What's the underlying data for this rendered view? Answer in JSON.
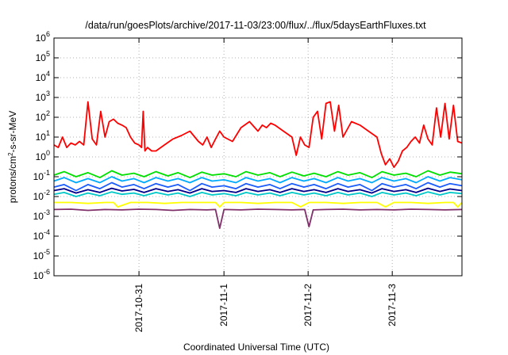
{
  "chart_data": {
    "type": "line",
    "title": "/data/run/goesPlots/archive/2017-11-03/23:00/flux/../flux/5daysEarthFluxes.txt",
    "xlabel": "Coordinated Universal Time (UTC)",
    "ylabel": "protons/cm2-s-sr-MeV",
    "ylabel_parts": {
      "base": "protons/cm",
      "sup": "2",
      "rest": "-s-sr-MeV"
    },
    "y_scale": "log",
    "ylim": [
      1e-06,
      1000000.0
    ],
    "y_ticks": [
      {
        "value": 1e-06,
        "base": "10",
        "exp": "-6"
      },
      {
        "value": 1e-05,
        "base": "10",
        "exp": "-5"
      },
      {
        "value": 0.0001,
        "base": "10",
        "exp": "-4"
      },
      {
        "value": 0.001,
        "base": "10",
        "exp": "-3"
      },
      {
        "value": 0.01,
        "base": "10",
        "exp": "-2"
      },
      {
        "value": 0.1,
        "base": "10",
        "exp": "-1"
      },
      {
        "value": 1,
        "base": "10",
        "exp": "0"
      },
      {
        "value": 10,
        "base": "10",
        "exp": "1"
      },
      {
        "value": 100,
        "base": "10",
        "exp": "2"
      },
      {
        "value": 1000,
        "base": "10",
        "exp": "3"
      },
      {
        "value": 10000,
        "base": "10",
        "exp": "4"
      },
      {
        "value": 100000,
        "base": "10",
        "exp": "5"
      },
      {
        "value": 1000000,
        "base": "10",
        "exp": "6"
      }
    ],
    "x_unit": "days",
    "xlim": [
      0,
      4.8
    ],
    "x_ticks": [
      {
        "value": 1,
        "label": "2017-10-31"
      },
      {
        "value": 2,
        "label": "2017-11-1"
      },
      {
        "value": 2.99,
        "label": "2017-11-2"
      },
      {
        "value": 3.98,
        "label": "2017-11-3"
      }
    ],
    "grid": true,
    "series": [
      {
        "color": "#ff0000",
        "x": [
          0,
          0.05,
          0.1,
          0.15,
          0.2,
          0.25,
          0.3,
          0.35,
          0.4,
          0.45,
          0.5,
          0.55,
          0.6,
          0.65,
          0.7,
          0.75,
          0.8,
          0.85,
          0.9,
          0.95,
          1.0,
          1.03,
          1.05,
          1.07,
          1.1,
          1.15,
          1.2,
          1.3,
          1.4,
          1.5,
          1.6,
          1.7,
          1.75,
          1.8,
          1.85,
          1.9,
          1.95,
          2.0,
          2.1,
          2.2,
          2.3,
          2.4,
          2.45,
          2.5,
          2.55,
          2.6,
          2.7,
          2.8,
          2.85,
          2.9,
          2.95,
          3.0,
          3.05,
          3.1,
          3.15,
          3.2,
          3.25,
          3.3,
          3.35,
          3.4,
          3.5,
          3.6,
          3.7,
          3.8,
          3.85,
          3.9,
          3.95,
          4.0,
          4.05,
          4.1,
          4.15,
          4.2,
          4.25,
          4.3,
          4.35,
          4.4,
          4.45,
          4.5,
          4.55,
          4.6,
          4.65,
          4.7,
          4.75,
          4.8
        ],
        "y": [
          4,
          3,
          10,
          3,
          5,
          4,
          6,
          4,
          600,
          8,
          4,
          200,
          10,
          60,
          80,
          50,
          40,
          30,
          10,
          5,
          4,
          3,
          200,
          2,
          3,
          2,
          2,
          4,
          8,
          12,
          20,
          6,
          4,
          10,
          3,
          8,
          20,
          10,
          6,
          30,
          60,
          20,
          40,
          30,
          50,
          40,
          20,
          10,
          1.2,
          10,
          4,
          3,
          100,
          200,
          8,
          500,
          600,
          20,
          400,
          10,
          60,
          40,
          20,
          10,
          1.5,
          0.4,
          0.8,
          0.3,
          0.6,
          2,
          3,
          6,
          10,
          5,
          40,
          8,
          4,
          300,
          10,
          500,
          8,
          400,
          6,
          5
        ]
      },
      {
        "color": "#00e000",
        "x": [
          0,
          0.12,
          0.26,
          0.4,
          0.54,
          0.68,
          0.8,
          0.94,
          1.06,
          1.2,
          1.34,
          1.46,
          1.6,
          1.74,
          1.86,
          2.0,
          2.14,
          2.26,
          2.4,
          2.54,
          2.66,
          2.8,
          2.94,
          3.06,
          3.2,
          3.34,
          3.46,
          3.6,
          3.74,
          3.86,
          4.0,
          4.14,
          4.26,
          4.4,
          4.54,
          4.66,
          4.8
        ],
        "y": [
          0.12,
          0.18,
          0.1,
          0.16,
          0.09,
          0.2,
          0.12,
          0.15,
          0.1,
          0.18,
          0.11,
          0.16,
          0.09,
          0.17,
          0.12,
          0.14,
          0.1,
          0.18,
          0.12,
          0.16,
          0.1,
          0.17,
          0.11,
          0.15,
          0.1,
          0.18,
          0.12,
          0.16,
          0.09,
          0.18,
          0.12,
          0.15,
          0.1,
          0.2,
          0.12,
          0.17,
          0.14
        ]
      },
      {
        "color": "#00aaff",
        "x": [
          0,
          0.12,
          0.26,
          0.4,
          0.54,
          0.68,
          0.8,
          0.94,
          1.06,
          1.2,
          1.34,
          1.46,
          1.6,
          1.74,
          1.86,
          2.0,
          2.14,
          2.26,
          2.4,
          2.54,
          2.66,
          2.8,
          2.94,
          3.06,
          3.2,
          3.34,
          3.46,
          3.6,
          3.74,
          3.86,
          4.0,
          4.14,
          4.26,
          4.4,
          4.54,
          4.66,
          4.8
        ],
        "y": [
          0.06,
          0.09,
          0.05,
          0.08,
          0.05,
          0.1,
          0.06,
          0.08,
          0.05,
          0.09,
          0.06,
          0.08,
          0.05,
          0.09,
          0.06,
          0.07,
          0.05,
          0.09,
          0.06,
          0.08,
          0.05,
          0.09,
          0.06,
          0.08,
          0.05,
          0.09,
          0.06,
          0.08,
          0.05,
          0.09,
          0.06,
          0.08,
          0.05,
          0.1,
          0.06,
          0.09,
          0.07
        ]
      },
      {
        "color": "#1a5cff",
        "x": [
          0,
          0.12,
          0.26,
          0.4,
          0.54,
          0.68,
          0.8,
          0.94,
          1.06,
          1.2,
          1.34,
          1.46,
          1.6,
          1.74,
          1.86,
          2.0,
          2.14,
          2.26,
          2.4,
          2.54,
          2.66,
          2.8,
          2.94,
          3.06,
          3.2,
          3.34,
          3.46,
          3.6,
          3.74,
          3.86,
          4.0,
          4.14,
          4.26,
          4.4,
          4.54,
          4.66,
          4.8
        ],
        "y": [
          0.03,
          0.04,
          0.02,
          0.04,
          0.025,
          0.05,
          0.03,
          0.04,
          0.025,
          0.045,
          0.03,
          0.04,
          0.02,
          0.045,
          0.03,
          0.035,
          0.025,
          0.045,
          0.03,
          0.04,
          0.025,
          0.045,
          0.03,
          0.04,
          0.025,
          0.045,
          0.03,
          0.04,
          0.02,
          0.045,
          0.03,
          0.04,
          0.025,
          0.05,
          0.03,
          0.045,
          0.035
        ]
      },
      {
        "color": "#00c8c8",
        "x": [
          0,
          0.12,
          0.26,
          0.4,
          0.54,
          0.68,
          0.8,
          0.94,
          1.06,
          1.2,
          1.34,
          1.46,
          1.6,
          1.74,
          1.86,
          2.0,
          2.14,
          2.26,
          2.4,
          2.54,
          2.66,
          2.8,
          2.94,
          3.06,
          3.2,
          3.34,
          3.46,
          3.6,
          3.74,
          3.86,
          4.0,
          4.14,
          4.26,
          4.4,
          4.54,
          4.66,
          4.8
        ],
        "y": [
          0.013,
          0.016,
          0.01,
          0.015,
          0.011,
          0.017,
          0.013,
          0.015,
          0.011,
          0.016,
          0.012,
          0.015,
          0.01,
          0.016,
          0.012,
          0.014,
          0.011,
          0.016,
          0.012,
          0.015,
          0.011,
          0.016,
          0.012,
          0.015,
          0.011,
          0.016,
          0.012,
          0.015,
          0.01,
          0.016,
          0.012,
          0.015,
          0.011,
          0.017,
          0.012,
          0.016,
          0.014
        ]
      },
      {
        "color": "#00008b",
        "x": [
          0,
          0.12,
          0.26,
          0.4,
          0.54,
          0.68,
          0.8,
          0.94,
          1.06,
          1.2,
          1.34,
          1.46,
          1.6,
          1.74,
          1.86,
          2.0,
          2.14,
          2.26,
          2.4,
          2.54,
          2.66,
          2.8,
          2.94,
          3.06,
          3.2,
          3.34,
          3.46,
          3.6,
          3.74,
          3.86,
          4.0,
          4.14,
          4.26,
          4.4,
          4.54,
          4.66,
          4.8
        ],
        "y": [
          0.02,
          0.025,
          0.015,
          0.022,
          0.016,
          0.026,
          0.019,
          0.023,
          0.016,
          0.025,
          0.018,
          0.022,
          0.015,
          0.025,
          0.018,
          0.02,
          0.016,
          0.025,
          0.018,
          0.022,
          0.016,
          0.025,
          0.018,
          0.022,
          0.016,
          0.025,
          0.018,
          0.022,
          0.015,
          0.025,
          0.018,
          0.022,
          0.016,
          0.026,
          0.018,
          0.024,
          0.02
        ]
      },
      {
        "color": "#ffff00",
        "x": [
          0,
          0.2,
          0.4,
          0.6,
          0.7,
          0.75,
          0.9,
          1.1,
          1.3,
          1.5,
          1.7,
          1.9,
          1.95,
          2.0,
          2.2,
          2.4,
          2.6,
          2.8,
          2.9,
          3.0,
          3.2,
          3.4,
          3.6,
          3.8,
          3.9,
          4.0,
          4.2,
          4.4,
          4.6,
          4.7,
          4.75,
          4.8
        ],
        "y": [
          0.005,
          0.005,
          0.0045,
          0.005,
          0.005,
          0.003,
          0.005,
          0.005,
          0.0045,
          0.005,
          0.005,
          0.005,
          0.003,
          0.005,
          0.005,
          0.0045,
          0.005,
          0.005,
          0.003,
          0.005,
          0.005,
          0.0045,
          0.005,
          0.005,
          0.003,
          0.005,
          0.005,
          0.0045,
          0.005,
          0.005,
          0.003,
          0.005
        ]
      },
      {
        "color": "#80306a",
        "x": [
          0,
          0.2,
          0.4,
          0.6,
          0.8,
          1.0,
          1.2,
          1.4,
          1.6,
          1.8,
          1.9,
          1.95,
          2.0,
          2.2,
          2.4,
          2.6,
          2.8,
          2.95,
          3.0,
          3.05,
          3.2,
          3.4,
          3.6,
          3.8,
          4.0,
          4.2,
          4.4,
          4.6,
          4.8
        ],
        "y": [
          0.0022,
          0.0023,
          0.002,
          0.0022,
          0.0021,
          0.0023,
          0.0022,
          0.002,
          0.0022,
          0.0021,
          0.0022,
          0.00025,
          0.0022,
          0.0021,
          0.0023,
          0.0022,
          0.0021,
          0.0022,
          0.0003,
          0.0021,
          0.0022,
          0.0023,
          0.0021,
          0.0022,
          0.0021,
          0.0023,
          0.0022,
          0.0021,
          0.0022
        ]
      }
    ]
  }
}
